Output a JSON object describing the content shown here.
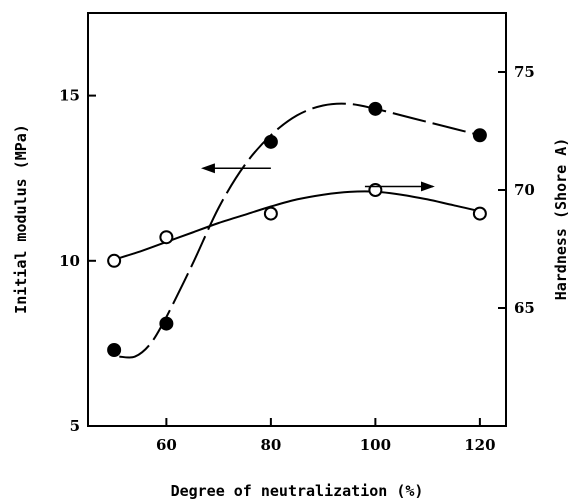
{
  "chart_data": {
    "type": "scatter",
    "title": "",
    "xlabel": "Degree of neutralization (%)",
    "ylabel_left": "Initial modulus (MPa)",
    "ylabel_right": "Hardness (Shore A)",
    "xlim": [
      45,
      125
    ],
    "ylim_left": [
      5,
      17.5
    ],
    "ylim_right": [
      60,
      77.5
    ],
    "x_ticks": [
      60,
      80,
      100,
      120
    ],
    "y_left_ticks": [
      5,
      10,
      15
    ],
    "y_right_ticks": [
      65,
      70,
      75
    ],
    "grid": false,
    "legend": "none (arrows point to each curve's axis)",
    "series": [
      {
        "axis": "left",
        "marker": "filled-circle",
        "line": "dashed smooth curve",
        "x": [
          50,
          60,
          80,
          100,
          120
        ],
        "y": [
          7.3,
          8.1,
          13.6,
          14.6,
          13.8
        ],
        "curve_x": [
          51,
          54,
          57,
          60,
          65,
          70,
          75,
          80,
          85,
          90,
          95,
          100,
          105,
          110,
          115,
          120
        ],
        "curve_y": [
          7.1,
          7.1,
          7.5,
          8.3,
          9.9,
          11.6,
          12.9,
          13.8,
          14.4,
          14.7,
          14.75,
          14.6,
          14.4,
          14.2,
          14.0,
          13.8
        ]
      },
      {
        "axis": "right",
        "marker": "open-circle",
        "line": "solid smooth curve",
        "x": [
          50,
          60,
          80,
          100,
          120
        ],
        "y": [
          67,
          68,
          69,
          70,
          69
        ],
        "curve_x": [
          50,
          55,
          60,
          65,
          70,
          75,
          80,
          85,
          90,
          95,
          100,
          105,
          110,
          115,
          120
        ],
        "curve_y": [
          67.05,
          67.4,
          67.8,
          68.2,
          68.6,
          68.95,
          69.3,
          69.6,
          69.8,
          69.92,
          69.93,
          69.8,
          69.6,
          69.35,
          69.1
        ]
      }
    ],
    "annotations": [
      {
        "type": "arrow",
        "direction": "left",
        "x_from": 80,
        "x_to": 67,
        "y_left": 12.8,
        "meaning": "points to left axis"
      },
      {
        "type": "arrow",
        "direction": "right",
        "x_from": 98,
        "x_to": 111,
        "y_right": 70.15,
        "meaning": "points to right axis"
      }
    ]
  }
}
